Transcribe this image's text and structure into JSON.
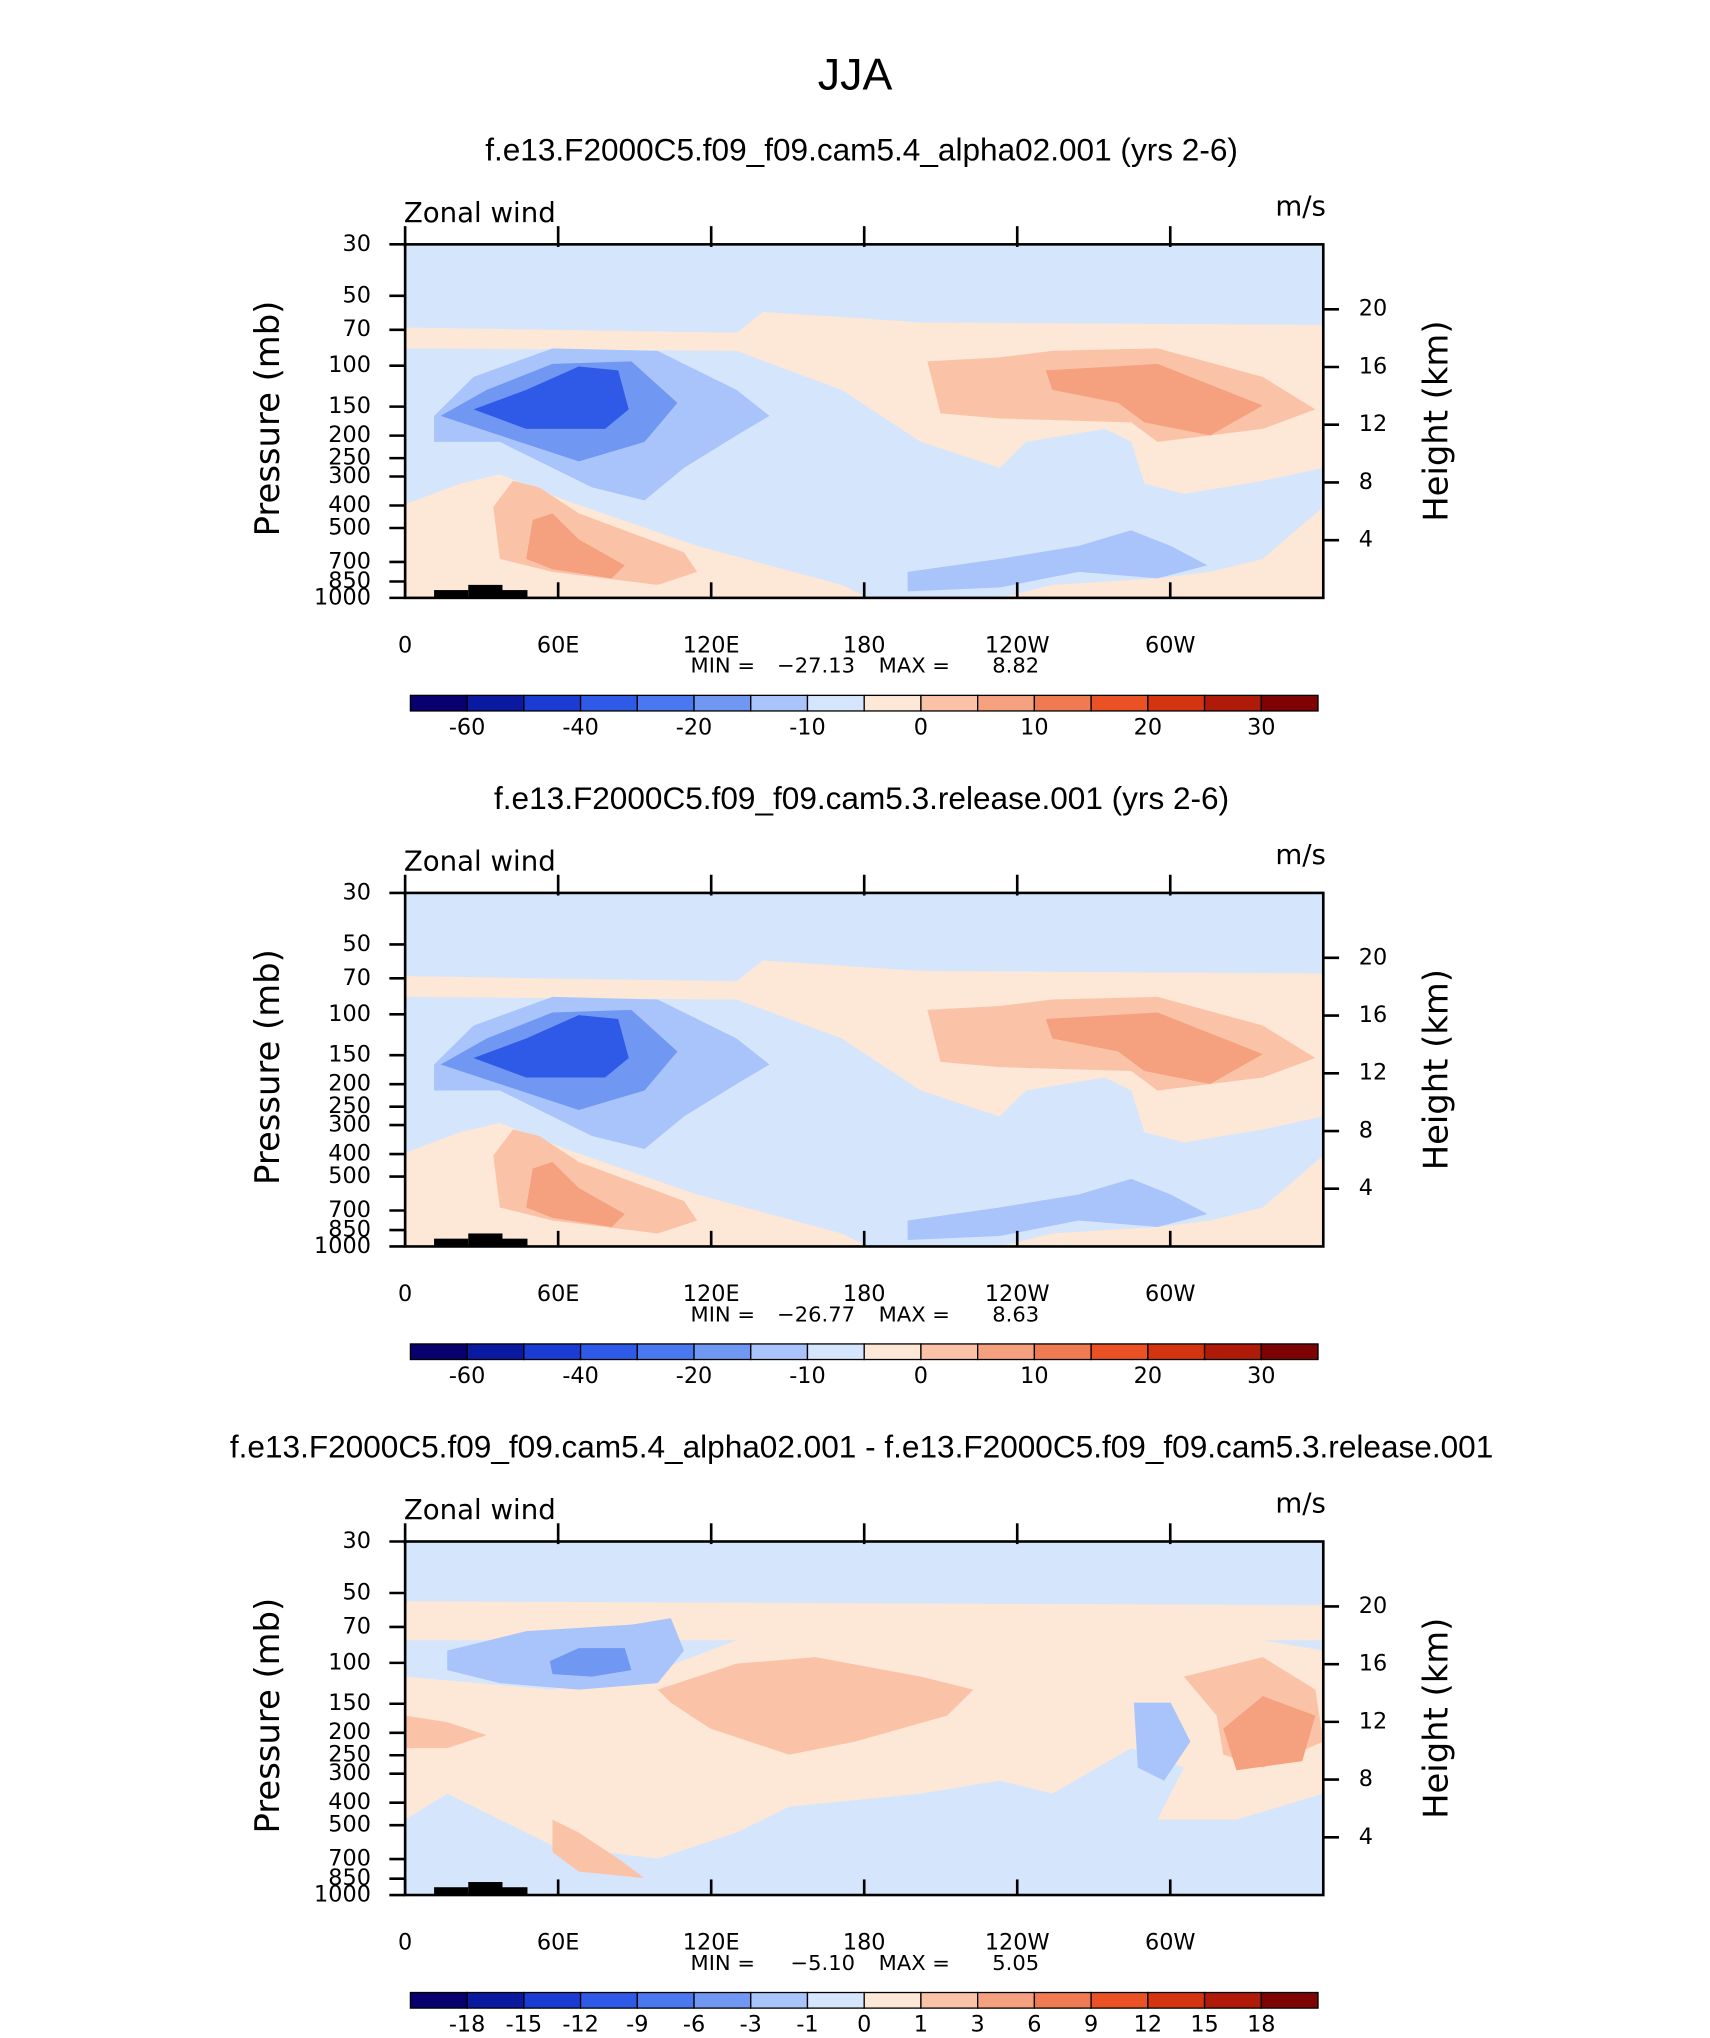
{
  "title": "JJA",
  "chart_data": [
    {
      "type": "contour",
      "title": "f.e13.F2000C5.f09_f09.cam5.4_alpha02.001 (yrs 2-6)",
      "left_label": "Zonal wind",
      "right_label": "m/s",
      "y_label": "Pressure (mb)",
      "y2_label": "Height (km)",
      "xlim": [
        0,
        360
      ],
      "xticks": [
        0,
        {
          "value": 60,
          "label": "60E"
        },
        {
          "value": 120,
          "label": "120E"
        },
        180,
        {
          "value": 240,
          "label": "120W"
        },
        {
          "value": 300,
          "label": "60W"
        }
      ],
      "ylim": [
        1000,
        30
      ],
      "log_y": true,
      "yticks": [
        30,
        50,
        70,
        100,
        150,
        200,
        250,
        300,
        400,
        500,
        700,
        850,
        1000
      ],
      "y2lim": [
        0,
        24.5
      ],
      "y2ticks": [
        4,
        8,
        12,
        16,
        20
      ],
      "min_label": "MIN =",
      "min": {
        "value": -27.13,
        "label": "−27.13"
      },
      "max_label": "MAX =",
      "max": {
        "value": 8.82,
        "label": "8.82"
      },
      "colorbar": {
        "colors": [
          "#08006e",
          "#0a1aa0",
          "#1a3cd2",
          "#2f5ae8",
          "#4a78f0",
          "#7097f2",
          "#a9c4fa",
          "#d5e6fc",
          "#fde7d6",
          "#fac3a8",
          "#f5a07e",
          "#f07a52",
          "#ea5226",
          "#d43410",
          "#b01a08",
          "#7e0404"
        ],
        "levels": [
          -60,
          null,
          -40,
          null,
          -20,
          null,
          -10,
          null,
          0,
          null,
          10,
          null,
          20,
          null,
          30
        ]
      }
    },
    {
      "type": "contour",
      "title": "f.e13.F2000C5.f09_f09.cam5.3.release.001 (yrs 2-6)",
      "left_label": "Zonal wind",
      "right_label": "m/s",
      "y_label": "Pressure (mb)",
      "y2_label": "Height (km)",
      "xlim": [
        0,
        360
      ],
      "xticks": [
        0,
        {
          "value": 60,
          "label": "60E"
        },
        {
          "value": 120,
          "label": "120E"
        },
        180,
        {
          "value": 240,
          "label": "120W"
        },
        {
          "value": 300,
          "label": "60W"
        }
      ],
      "ylim": [
        1000,
        30
      ],
      "log_y": true,
      "yticks": [
        30,
        50,
        70,
        100,
        150,
        200,
        250,
        300,
        400,
        500,
        700,
        850,
        1000
      ],
      "y2lim": [
        0,
        24.5
      ],
      "y2ticks": [
        4,
        8,
        12,
        16,
        20
      ],
      "min_label": "MIN =",
      "min": {
        "value": -26.77,
        "label": "−26.77"
      },
      "max_label": "MAX =",
      "max": {
        "value": 8.63,
        "label": "8.63"
      },
      "colorbar": {
        "colors": [
          "#08006e",
          "#0a1aa0",
          "#1a3cd2",
          "#2f5ae8",
          "#4a78f0",
          "#7097f2",
          "#a9c4fa",
          "#d5e6fc",
          "#fde7d6",
          "#fac3a8",
          "#f5a07e",
          "#f07a52",
          "#ea5226",
          "#d43410",
          "#b01a08",
          "#7e0404"
        ],
        "levels": [
          -60,
          null,
          -40,
          null,
          -20,
          null,
          -10,
          null,
          0,
          null,
          10,
          null,
          20,
          null,
          30
        ]
      }
    },
    {
      "type": "contour",
      "title": "f.e13.F2000C5.f09_f09.cam5.4_alpha02.001 - f.e13.F2000C5.f09_f09.cam5.3.release.001",
      "left_label": "Zonal wind",
      "right_label": "m/s",
      "y_label": "Pressure (mb)",
      "y2_label": "Height (km)",
      "xlim": [
        0,
        360
      ],
      "xticks": [
        0,
        {
          "value": 60,
          "label": "60E"
        },
        {
          "value": 120,
          "label": "120E"
        },
        180,
        {
          "value": 240,
          "label": "120W"
        },
        {
          "value": 300,
          "label": "60W"
        }
      ],
      "ylim": [
        1000,
        30
      ],
      "log_y": true,
      "yticks": [
        30,
        50,
        70,
        100,
        150,
        200,
        250,
        300,
        400,
        500,
        700,
        850,
        1000
      ],
      "y2lim": [
        0,
        24.5
      ],
      "y2ticks": [
        4,
        8,
        12,
        16,
        20
      ],
      "min_label": "MIN =",
      "min": {
        "value": -5.1,
        "label": "−5.10"
      },
      "max_label": "MAX =",
      "max": {
        "value": 5.05,
        "label": "5.05"
      },
      "colorbar": {
        "colors": [
          "#08006e",
          "#0a1aa0",
          "#1a3cd2",
          "#2f5ae8",
          "#4a78f0",
          "#7097f2",
          "#a9c4fa",
          "#d5e6fc",
          "#fde7d6",
          "#fac3a8",
          "#f5a07e",
          "#f07a52",
          "#ea5226",
          "#d43410",
          "#b01a08",
          "#7e0404"
        ],
        "levels": [
          -18,
          -15,
          -12,
          -9,
          -6,
          -3,
          -1,
          0,
          1,
          3,
          6,
          9,
          12,
          15,
          18
        ]
      }
    }
  ]
}
